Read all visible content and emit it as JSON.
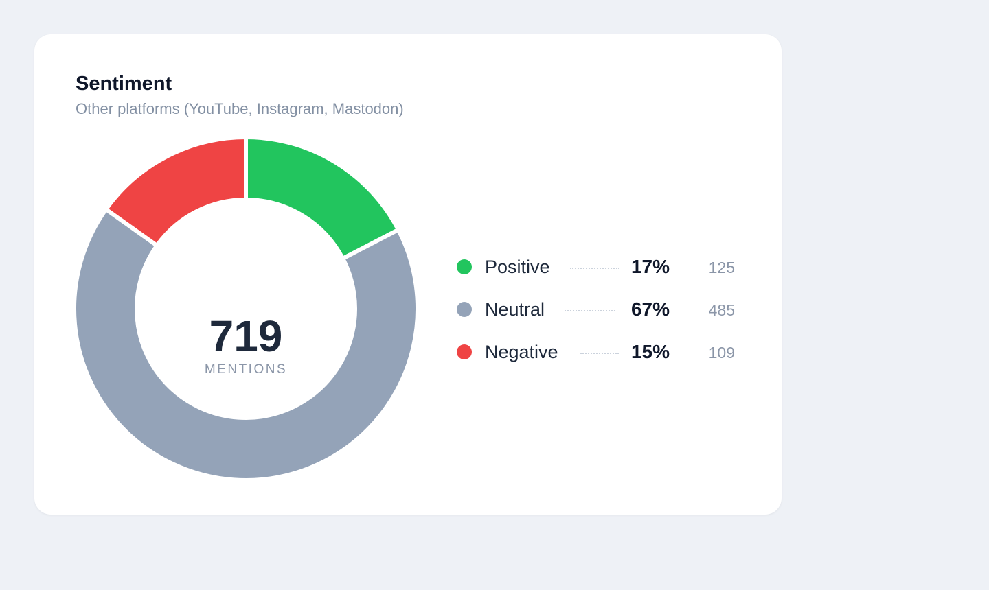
{
  "card": {
    "title": "Sentiment",
    "subtitle": "Other platforms (YouTube, Instagram, Mastodon)"
  },
  "chart_data": {
    "type": "pie",
    "style": "donut",
    "center_value": "719",
    "center_label": "MENTIONS",
    "total": 719,
    "slices": [
      {
        "name": "Positive",
        "value": 125,
        "percent_label": "17%",
        "count_label": "125",
        "color": "#22c55e"
      },
      {
        "name": "Neutral",
        "value": 485,
        "percent_label": "67%",
        "count_label": "485",
        "color": "#94a3b8"
      },
      {
        "name": "Negative",
        "value": 109,
        "percent_label": "15%",
        "count_label": "109",
        "color": "#ef4444"
      }
    ],
    "legend_position": "right"
  }
}
